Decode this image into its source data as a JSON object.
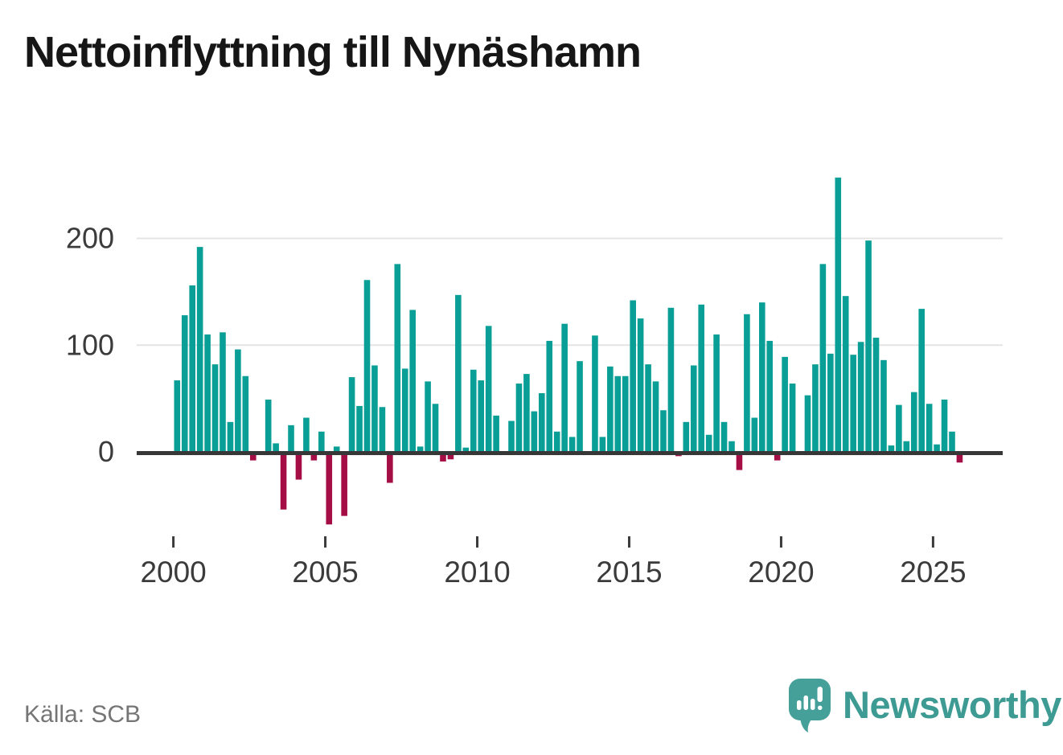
{
  "title": "Nettoinflyttning till Nynäshamn",
  "source": "Källa: SCB",
  "logo": {
    "text": "Newsworthy"
  },
  "chart_data": {
    "type": "bar",
    "title": "Nettoinflyttning till Nynäshamn",
    "x_unit": "quarter",
    "x_range": "2000Q1–2025Q4",
    "values_by_year": {
      "2000": [
        67,
        128,
        156,
        192
      ],
      "2001": [
        110,
        82,
        112,
        28
      ],
      "2002": [
        96,
        71,
        -8,
        0
      ],
      "2003": [
        49,
        8,
        -54,
        25
      ],
      "2004": [
        -26,
        32,
        -8,
        19
      ],
      "2005": [
        -68,
        5,
        -60,
        70
      ],
      "2006": [
        43,
        161,
        81,
        42
      ],
      "2007": [
        -29,
        176,
        78,
        133
      ],
      "2008": [
        5,
        66,
        45,
        -9
      ],
      "2009": [
        -7,
        147,
        4,
        77
      ],
      "2010": [
        67,
        118,
        34,
        0
      ],
      "2011": [
        29,
        64,
        73,
        38
      ],
      "2012": [
        55,
        104,
        19,
        120
      ],
      "2013": [
        14,
        85,
        0,
        109
      ],
      "2014": [
        14,
        80,
        71,
        71
      ],
      "2015": [
        142,
        125,
        82,
        66
      ],
      "2016": [
        39,
        135,
        -4,
        28
      ],
      "2017": [
        81,
        138,
        16,
        110
      ],
      "2018": [
        28,
        10,
        -17,
        129
      ],
      "2019": [
        32,
        140,
        104,
        -8
      ],
      "2020": [
        89,
        64,
        0,
        53
      ],
      "2021": [
        82,
        176,
        92,
        257
      ],
      "2022": [
        146,
        91,
        103,
        198
      ],
      "2023": [
        107,
        86,
        6,
        44
      ],
      "2024": [
        10,
        56,
        134,
        45
      ],
      "2025": [
        7,
        49,
        19,
        -10
      ]
    },
    "yticks": [
      0,
      100,
      200
    ],
    "xticks": [
      2000,
      2005,
      2010,
      2015,
      2020,
      2025
    ],
    "ylim": [
      -75,
      270
    ],
    "grid": true,
    "legend": "none",
    "colors": {
      "positive": "#0a9f96",
      "negative": "#a50d45",
      "axis": "#373737",
      "gridline": "#e4e4e4",
      "tick_label": "#3b3b3b"
    }
  }
}
